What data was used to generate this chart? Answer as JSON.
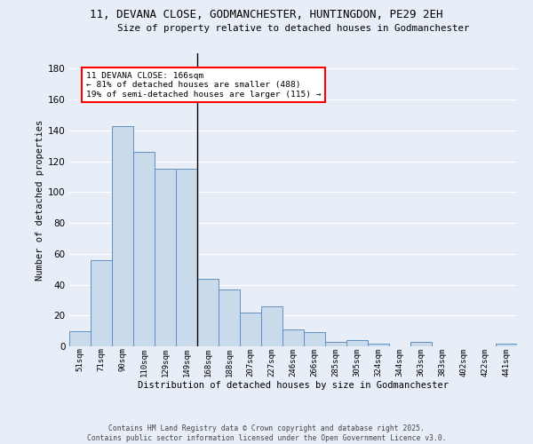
{
  "title_line1": "11, DEVANA CLOSE, GODMANCHESTER, HUNTINGDON, PE29 2EH",
  "title_line2": "Size of property relative to detached houses in Godmanchester",
  "xlabel": "Distribution of detached houses by size in Godmanchester",
  "ylabel": "Number of detached properties",
  "bar_color": "#c9daea",
  "bar_edge_color": "#6090c0",
  "background_color": "#e8eef8",
  "grid_color": "#ffffff",
  "categories": [
    "51sqm",
    "71sqm",
    "90sqm",
    "110sqm",
    "129sqm",
    "149sqm",
    "168sqm",
    "188sqm",
    "207sqm",
    "227sqm",
    "246sqm",
    "266sqm",
    "285sqm",
    "305sqm",
    "324sqm",
    "344sqm",
    "363sqm",
    "383sqm",
    "402sqm",
    "422sqm",
    "441sqm"
  ],
  "values": [
    10,
    56,
    143,
    126,
    115,
    115,
    44,
    37,
    22,
    26,
    11,
    9,
    3,
    4,
    2,
    0,
    3,
    0,
    0,
    0,
    2
  ],
  "vline_index": 6,
  "annotation_text": "11 DEVANA CLOSE: 166sqm\n← 81% of detached houses are smaller (488)\n19% of semi-detached houses are larger (115) →",
  "ylim": [
    0,
    190
  ],
  "yticks": [
    0,
    20,
    40,
    60,
    80,
    100,
    120,
    140,
    160,
    180
  ],
  "footnote": "Contains HM Land Registry data © Crown copyright and database right 2025.\nContains public sector information licensed under the Open Government Licence v3.0."
}
